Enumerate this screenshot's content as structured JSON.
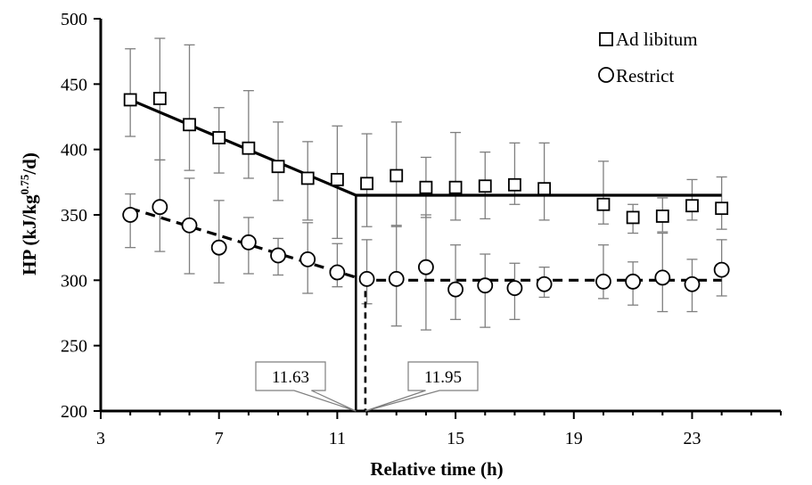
{
  "chart_data": {
    "type": "scatter",
    "title": "",
    "xlabel": "Relative time (h)",
    "ylabel_main": "HP (kJ/kg",
    "ylabel_sup": "0.75",
    "ylabel_tail": "/d)",
    "xlim": [
      3,
      26
    ],
    "ylim": [
      200,
      500
    ],
    "x_ticks": [
      "3",
      "7",
      "11",
      "15",
      "19",
      "23"
    ],
    "y_ticks": [
      "200",
      "250",
      "300",
      "350",
      "400",
      "450",
      "500"
    ],
    "x_tick_values": [
      3,
      7,
      11,
      15,
      19,
      23
    ],
    "y_tick_values": [
      200,
      250,
      300,
      350,
      400,
      450,
      500
    ],
    "legend_position": "top-right",
    "series": [
      {
        "name": "Ad libitum",
        "marker": "square",
        "points": [
          {
            "x": 4,
            "y": 438,
            "err_low": 410,
            "err_high": 477
          },
          {
            "x": 5,
            "y": 439,
            "err_low": 392,
            "err_high": 485
          },
          {
            "x": 6,
            "y": 419,
            "err_low": 384,
            "err_high": 480
          },
          {
            "x": 7,
            "y": 409,
            "err_low": 382,
            "err_high": 432
          },
          {
            "x": 8,
            "y": 401,
            "err_low": 378,
            "err_high": 445
          },
          {
            "x": 9,
            "y": 387,
            "err_low": 361,
            "err_high": 421
          },
          {
            "x": 10,
            "y": 378,
            "err_low": 346,
            "err_high": 406
          },
          {
            "x": 11,
            "y": 377,
            "err_low": 332,
            "err_high": 418
          },
          {
            "x": 12,
            "y": 374,
            "err_low": 341,
            "err_high": 412
          },
          {
            "x": 13,
            "y": 380,
            "err_low": 341,
            "err_high": 421
          },
          {
            "x": 14,
            "y": 371,
            "err_low": 348,
            "err_high": 394
          },
          {
            "x": 15,
            "y": 371,
            "err_low": 346,
            "err_high": 413
          },
          {
            "x": 16,
            "y": 372,
            "err_low": 347,
            "err_high": 398
          },
          {
            "x": 17,
            "y": 373,
            "err_low": 358,
            "err_high": 405
          },
          {
            "x": 18,
            "y": 370,
            "err_low": 346,
            "err_high": 405
          },
          {
            "x": 20,
            "y": 358,
            "err_low": 343,
            "err_high": 391
          },
          {
            "x": 21,
            "y": 348,
            "err_low": 336,
            "err_high": 358
          },
          {
            "x": 22,
            "y": 349,
            "err_low": 337,
            "err_high": 363
          },
          {
            "x": 23,
            "y": 357,
            "err_low": 346,
            "err_high": 377
          },
          {
            "x": 24,
            "y": 355,
            "err_low": 339,
            "err_high": 379
          }
        ],
        "fit": [
          [
            4,
            438
          ],
          [
            11.63,
            365
          ],
          [
            24,
            365
          ]
        ]
      },
      {
        "name": "Restrict",
        "marker": "circle",
        "points": [
          {
            "x": 4,
            "y": 350,
            "err_low": 325,
            "err_high": 366
          },
          {
            "x": 5,
            "y": 356,
            "err_low": 322,
            "err_high": 392
          },
          {
            "x": 6,
            "y": 342,
            "err_low": 305,
            "err_high": 378
          },
          {
            "x": 7,
            "y": 325,
            "err_low": 298,
            "err_high": 361
          },
          {
            "x": 8,
            "y": 329,
            "err_low": 305,
            "err_high": 348
          },
          {
            "x": 9,
            "y": 319,
            "err_low": 304,
            "err_high": 332
          },
          {
            "x": 10,
            "y": 316,
            "err_low": 290,
            "err_high": 344
          },
          {
            "x": 11,
            "y": 306,
            "err_low": 295,
            "err_high": 328
          },
          {
            "x": 12,
            "y": 301,
            "err_low": 282,
            "err_high": 331
          },
          {
            "x": 13,
            "y": 301,
            "err_low": 265,
            "err_high": 342
          },
          {
            "x": 14,
            "y": 310,
            "err_low": 262,
            "err_high": 350
          },
          {
            "x": 15,
            "y": 293,
            "err_low": 270,
            "err_high": 327
          },
          {
            "x": 16,
            "y": 296,
            "err_low": 264,
            "err_high": 320
          },
          {
            "x": 17,
            "y": 294,
            "err_low": 270,
            "err_high": 313
          },
          {
            "x": 18,
            "y": 297,
            "err_low": 287,
            "err_high": 310
          },
          {
            "x": 20,
            "y": 299,
            "err_low": 286,
            "err_high": 327
          },
          {
            "x": 21,
            "y": 299,
            "err_low": 281,
            "err_high": 314
          },
          {
            "x": 22,
            "y": 302,
            "err_low": 276,
            "err_high": 336
          },
          {
            "x": 23,
            "y": 297,
            "err_low": 276,
            "err_high": 316
          },
          {
            "x": 24,
            "y": 308,
            "err_low": 288,
            "err_high": 331
          }
        ],
        "fit": [
          [
            4,
            355
          ],
          [
            11.95,
            300
          ],
          [
            24,
            300
          ]
        ]
      }
    ],
    "breakpoints": [
      {
        "x": 11.63,
        "label": "11.63",
        "y_top": 365,
        "style": "solid",
        "label_side": "left"
      },
      {
        "x": 11.95,
        "label": "11.95",
        "y_top": 300,
        "style": "dashed",
        "label_side": "right"
      }
    ],
    "colors": {
      "line": "#000000",
      "error_bar": "#7f7f7f",
      "marker_fill": "#ffffff"
    }
  }
}
